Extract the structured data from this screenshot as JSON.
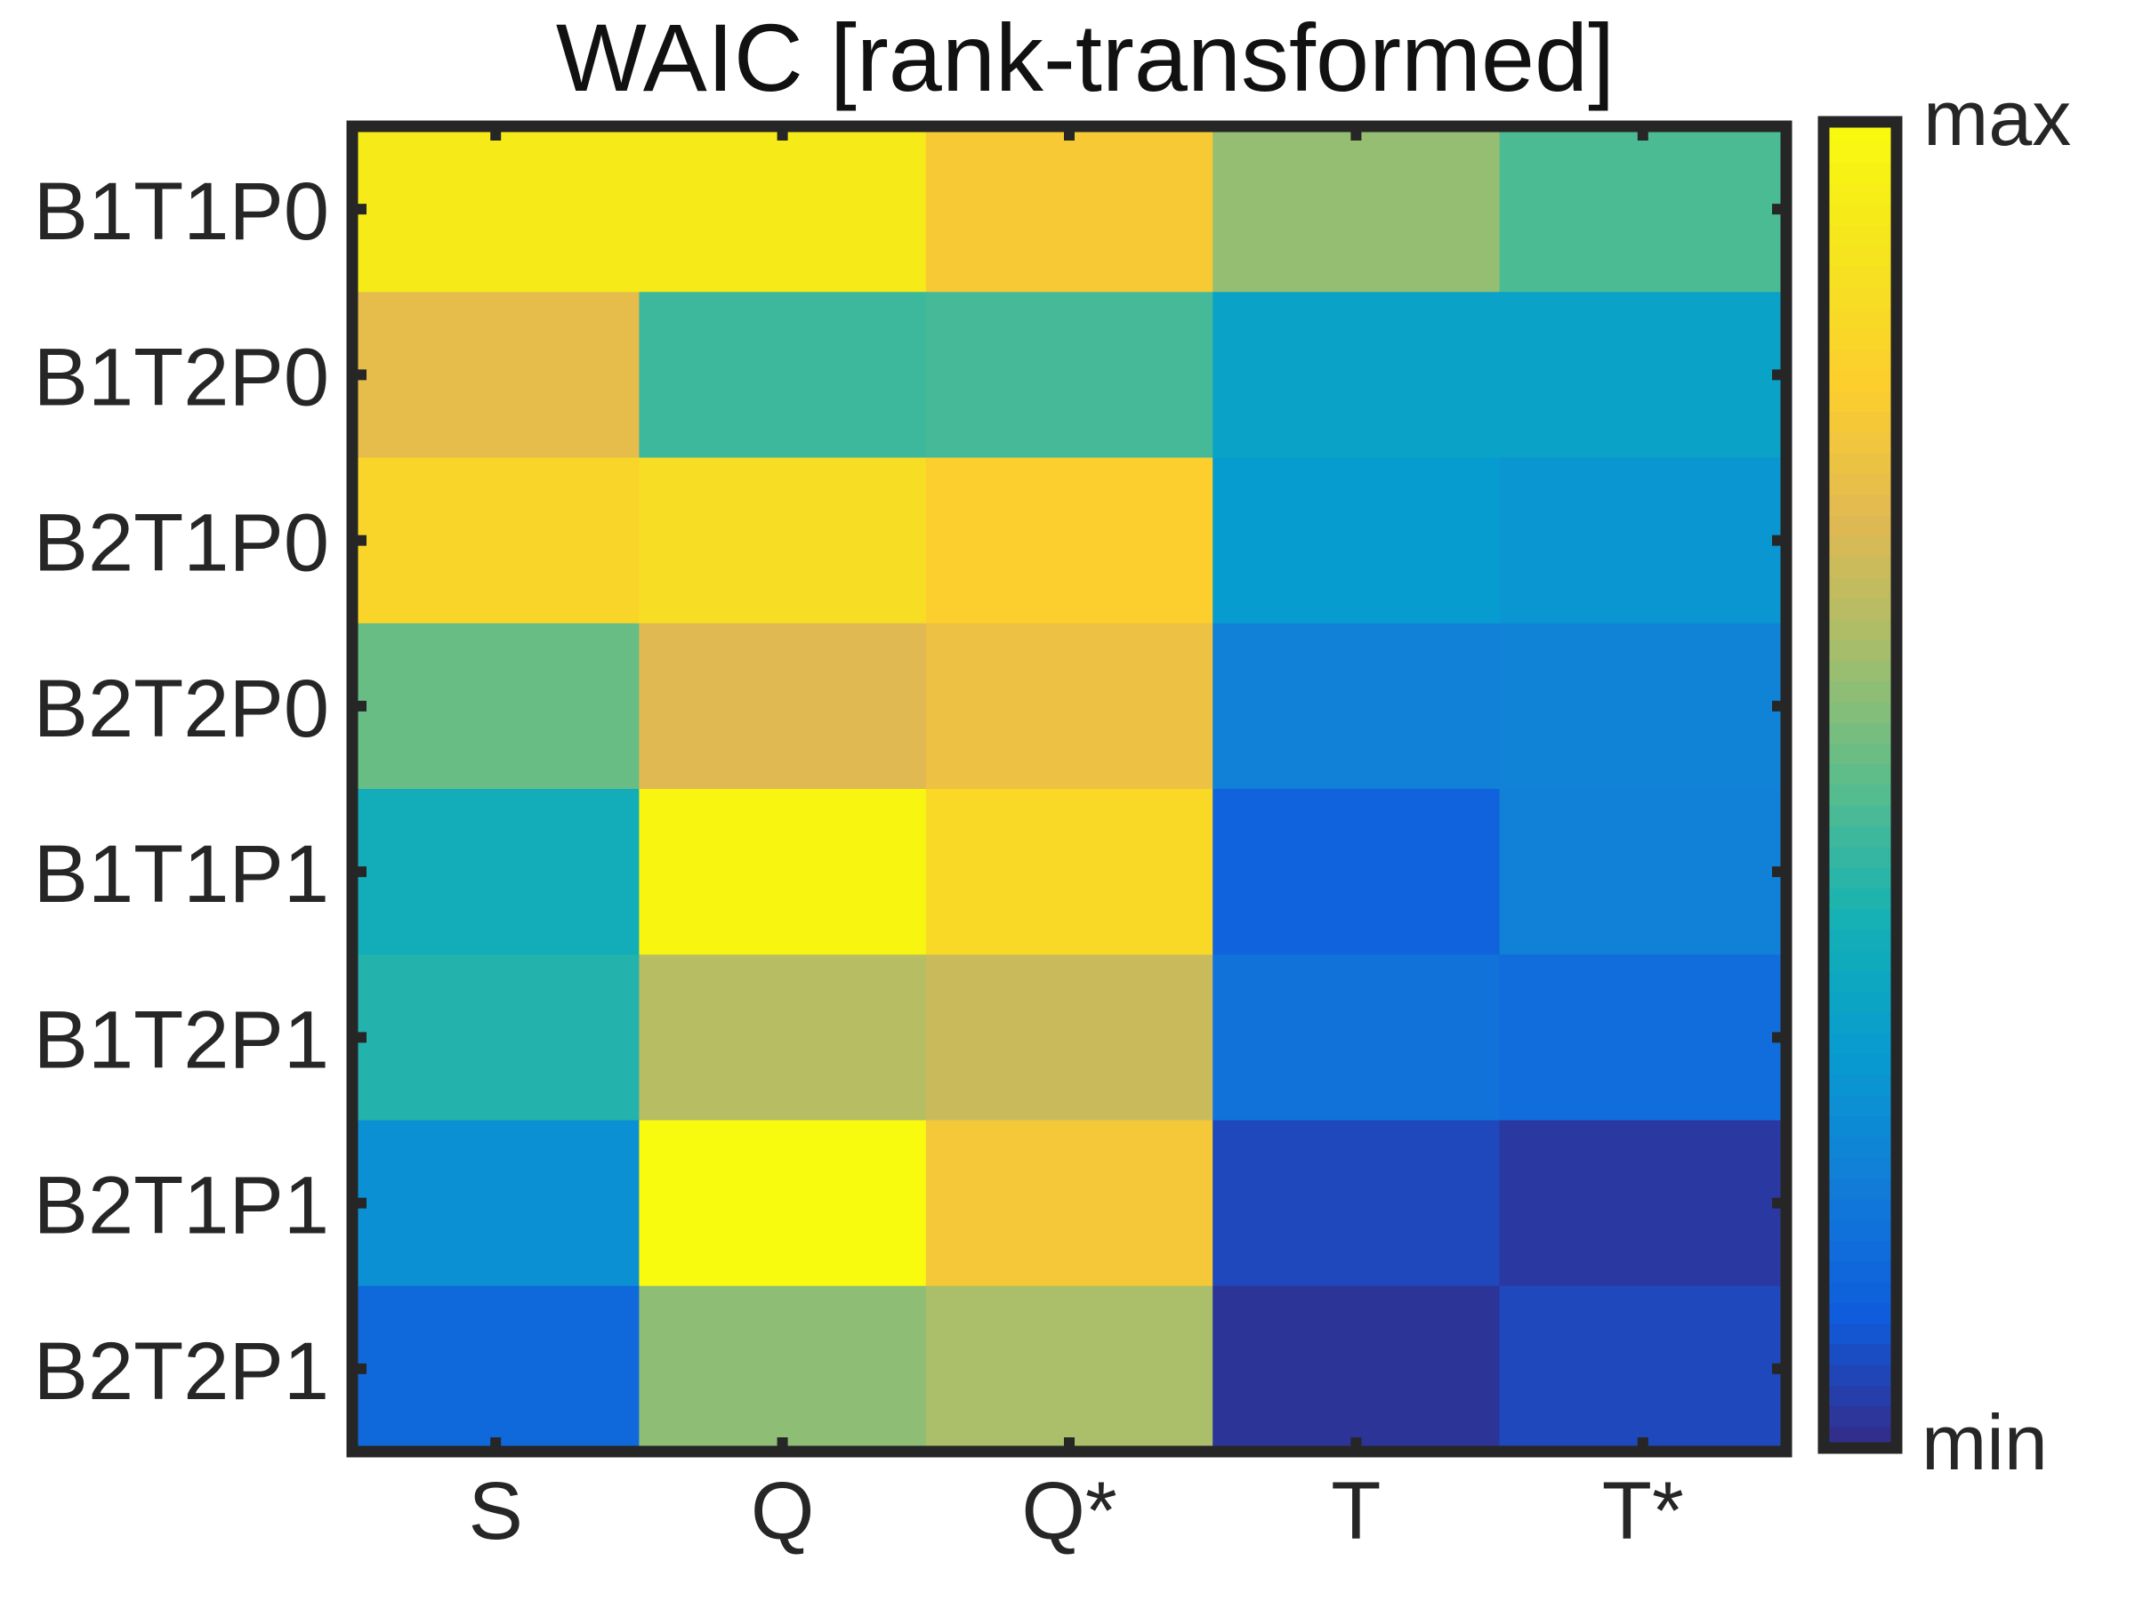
{
  "chart_data": {
    "type": "heatmap",
    "title": "WAIC [rank-transformed]",
    "xlabel": "",
    "ylabel": "",
    "x_categories": [
      "S",
      "Q",
      "Q*",
      "T",
      "T*"
    ],
    "y_categories": [
      "B1T1P0",
      "B1T2P0",
      "B2T1P0",
      "B2T2P0",
      "B1T1P1",
      "B1T2P1",
      "B2T1P1",
      "B2T2P1"
    ],
    "values": [
      [
        0.93,
        0.93,
        0.78,
        0.58,
        0.48
      ],
      [
        0.72,
        0.46,
        0.47,
        0.33,
        0.33
      ],
      [
        0.83,
        0.87,
        0.8,
        0.3,
        0.28
      ],
      [
        0.52,
        0.7,
        0.74,
        0.21,
        0.22
      ],
      [
        0.38,
        0.98,
        0.85,
        0.12,
        0.21
      ],
      [
        0.42,
        0.63,
        0.66,
        0.17,
        0.15
      ],
      [
        0.26,
        1.0,
        0.77,
        0.06,
        0.03
      ],
      [
        0.14,
        0.57,
        0.61,
        0.02,
        0.06
      ]
    ],
    "colorbar": {
      "max_label": "max",
      "min_label": "min",
      "colormap": "parula",
      "levels": 64
    },
    "grid": false,
    "colors": {
      "frame": "#262626",
      "background": "#ffffff"
    }
  }
}
